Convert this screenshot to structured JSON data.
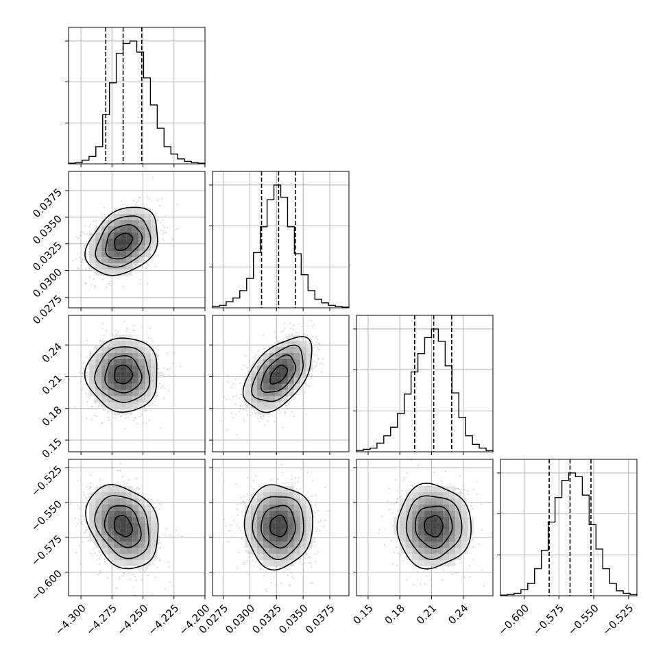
{
  "chart_data": {
    "type": "corner",
    "grid": true,
    "colors": {
      "line": "#000000",
      "grid": "#b0b0b0",
      "scatter": "#9a9a9a",
      "density_dark": "#000000"
    },
    "parameters": [
      {
        "index": 0,
        "range": [
          -4.31,
          -4.2
        ],
        "median": -4.266,
        "q16": -4.28,
        "q84": -4.251,
        "ticks": [
          -4.3,
          -4.275,
          -4.25,
          -4.225,
          -4.2
        ],
        "tick_labels": [
          "−4.300",
          "−4.275",
          "−4.250",
          "−4.225",
          "−4.200"
        ]
      },
      {
        "index": 1,
        "range": [
          0.0265,
          0.0393
        ],
        "median": 0.0327,
        "q16": 0.0311,
        "q84": 0.0343,
        "ticks": [
          0.0275,
          0.03,
          0.0325,
          0.035,
          0.0375
        ],
        "tick_labels": [
          "0.0275",
          "0.0300",
          "0.0325",
          "0.0350",
          "0.0375"
        ]
      },
      {
        "index": 2,
        "range": [
          0.139,
          0.268
        ],
        "median": 0.212,
        "q16": 0.194,
        "q84": 0.229,
        "ticks": [
          0.15,
          0.18,
          0.21,
          0.24
        ],
        "tick_labels": [
          "0.15",
          "0.18",
          "0.21",
          "0.24"
        ]
      },
      {
        "index": 3,
        "range": [
          -0.617,
          -0.519
        ],
        "median": -0.567,
        "q16": -0.582,
        "q84": -0.552,
        "ticks": [
          -0.6,
          -0.575,
          -0.55,
          -0.525
        ],
        "tick_labels": [
          "−0.600",
          "−0.575",
          "−0.550",
          "−0.525"
        ]
      }
    ],
    "histograms": [
      [
        0.005,
        0.01,
        0.03,
        0.06,
        0.14,
        0.4,
        0.66,
        0.9,
        0.98,
        1.0,
        0.91,
        0.7,
        0.48,
        0.29,
        0.14,
        0.08,
        0.04,
        0.02,
        0.01,
        0.005
      ],
      [
        0.01,
        0.02,
        0.05,
        0.08,
        0.14,
        0.24,
        0.45,
        0.66,
        0.88,
        1.0,
        0.9,
        0.66,
        0.44,
        0.27,
        0.14,
        0.07,
        0.04,
        0.02,
        0.01,
        0.005
      ],
      [
        0.01,
        0.02,
        0.03,
        0.07,
        0.13,
        0.2,
        0.31,
        0.47,
        0.65,
        0.8,
        0.93,
        1.0,
        0.9,
        0.7,
        0.48,
        0.28,
        0.13,
        0.06,
        0.03,
        0.01
      ],
      [
        0.005,
        0.01,
        0.02,
        0.05,
        0.1,
        0.22,
        0.37,
        0.6,
        0.8,
        0.94,
        1.0,
        0.97,
        0.82,
        0.58,
        0.38,
        0.22,
        0.1,
        0.04,
        0.02,
        0.01
      ]
    ],
    "correlations": [
      [
        1,
        0.3,
        0.0,
        -0.25
      ],
      [
        0.3,
        1,
        0.5,
        0.0
      ],
      [
        0.0,
        0.5,
        1,
        0.0
      ],
      [
        -0.25,
        0.0,
        0.0,
        1
      ]
    ]
  }
}
